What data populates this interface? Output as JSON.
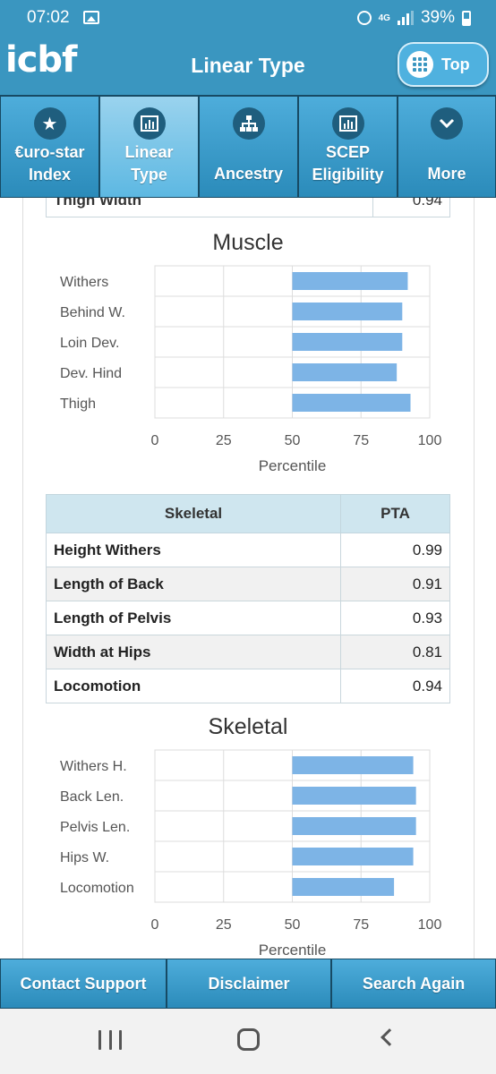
{
  "status_bar": {
    "time": "07:02",
    "network": "4G",
    "battery": "39%"
  },
  "app": {
    "logo": "icbf",
    "title": "Linear Type",
    "top_button": "Top"
  },
  "nav_tabs": [
    {
      "line1": "€uro-star",
      "line2": "Index",
      "icon": "star-icon",
      "active": false
    },
    {
      "line1": "Linear",
      "line2": "Type",
      "icon": "bar-chart-icon",
      "active": true
    },
    {
      "line1": "",
      "line2": "Ancestry",
      "icon": "hierarchy-icon",
      "active": false
    },
    {
      "line1": "SCEP",
      "line2": "Eligibility",
      "icon": "bar-chart-icon",
      "active": false
    },
    {
      "line1": "",
      "line2": "More",
      "icon": "chevron-down-icon",
      "active": false
    }
  ],
  "partial_row": {
    "label": "Thigh Width",
    "value": "0.94"
  },
  "muscle_title": "Muscle",
  "skeletal_title": "Skeletal",
  "skeletal_table": {
    "headers": [
      "Skeletal",
      "PTA"
    ],
    "rows": [
      {
        "label": "Height Withers",
        "value": "0.99"
      },
      {
        "label": "Length of Back",
        "value": "0.91"
      },
      {
        "label": "Length of Pelvis",
        "value": "0.93"
      },
      {
        "label": "Width at Hips",
        "value": "0.81"
      },
      {
        "label": "Locomotion",
        "value": "0.94"
      }
    ]
  },
  "chart_data": [
    {
      "type": "bar",
      "title": "Muscle",
      "orientation": "horizontal",
      "categories": [
        "Withers",
        "Behind W.",
        "Loin Dev.",
        "Dev. Hind",
        "Thigh"
      ],
      "range_start": 50,
      "values": [
        92,
        90,
        90,
        88,
        93
      ],
      "xlabel": "Percentile",
      "xlim": [
        0,
        100
      ],
      "ticks": [
        0,
        25,
        50,
        75,
        100
      ],
      "bar_color": "#7db4e6",
      "grid": true
    },
    {
      "type": "bar",
      "title": "Skeletal",
      "orientation": "horizontal",
      "categories": [
        "Withers H.",
        "Back Len.",
        "Pelvis Len.",
        "Hips W.",
        "Locomotion"
      ],
      "range_start": 50,
      "values": [
        94,
        95,
        95,
        94,
        87
      ],
      "xlabel": "Percentile",
      "xlim": [
        0,
        100
      ],
      "ticks": [
        0,
        25,
        50,
        75,
        100
      ],
      "bar_color": "#7db4e6",
      "grid": true
    }
  ],
  "footer": {
    "contact": "Contact Support",
    "disclaimer": "Disclaimer",
    "search": "Search Again"
  }
}
